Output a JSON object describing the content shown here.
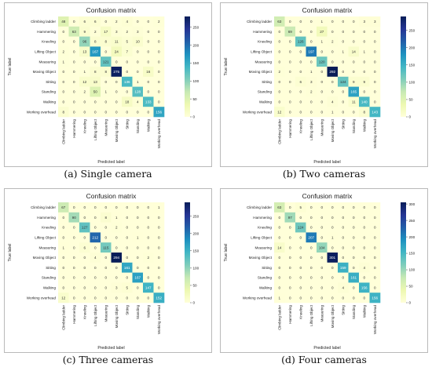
{
  "chart_data": [
    {
      "type": "heatmap",
      "title": "Confusion matrix",
      "caption": "(a) Single camera",
      "xlabel": "Predicted label",
      "ylabel": "True label",
      "labels": [
        "Climbing ladder",
        "Hammering",
        "Kneeling",
        "Lifting Object",
        "Measuring",
        "Moving Object",
        "Sitting",
        "Standing",
        "Walking",
        "Working overhead"
      ],
      "values": [
        [
          48,
          0,
          6,
          6,
          0,
          2,
          4,
          0,
          0,
          2
        ],
        [
          0,
          63,
          9,
          2,
          17,
          3,
          2,
          3,
          0,
          0
        ],
        [
          0,
          0,
          96,
          8,
          8,
          11,
          5,
          10,
          0,
          0
        ],
        [
          2,
          0,
          13,
          167,
          0,
          24,
          7,
          0,
          0,
          0
        ],
        [
          1,
          0,
          0,
          0,
          121,
          0,
          0,
          0,
          0,
          0
        ],
        [
          0,
          0,
          1,
          8,
          8,
          275,
          0,
          0,
          16,
          0
        ],
        [
          0,
          0,
          12,
          13,
          0,
          0,
          136,
          1,
          0,
          0
        ],
        [
          0,
          0,
          2,
          50,
          1,
          0,
          0,
          128,
          0,
          0
        ],
        [
          0,
          0,
          0,
          0,
          0,
          0,
          18,
          4,
          133,
          0
        ],
        [
          8,
          0,
          0,
          0,
          0,
          0,
          0,
          0,
          0,
          156
        ]
      ],
      "vmax": 280,
      "colorbar_ticks": [
        0,
        50,
        100,
        150,
        200,
        250
      ]
    },
    {
      "type": "heatmap",
      "title": "Confusion matrix",
      "caption": "(b) Two cameras",
      "xlabel": "Predicted label",
      "ylabel": "True label",
      "labels": [
        "Climbing ladder",
        "Hammering",
        "Kneeling",
        "Lifting Object",
        "Measuring",
        "Moving Object",
        "Sitting",
        "Standing",
        "Walking",
        "Working overhead"
      ],
      "values": [
        [
          63,
          0,
          0,
          0,
          1,
          0,
          0,
          0,
          3,
          3
        ],
        [
          0,
          69,
          0,
          0,
          27,
          0,
          0,
          0,
          0,
          0
        ],
        [
          0,
          0,
          126,
          0,
          1,
          2,
          0,
          0,
          0,
          0
        ],
        [
          0,
          0,
          0,
          197,
          0,
          0,
          1,
          14,
          1,
          0
        ],
        [
          0,
          0,
          0,
          0,
          120,
          0,
          0,
          0,
          0,
          0
        ],
        [
          2,
          0,
          0,
          1,
          0,
          292,
          0,
          0,
          0,
          0
        ],
        [
          0,
          0,
          6,
          3,
          0,
          0,
          124,
          9,
          9,
          0
        ],
        [
          0,
          0,
          0,
          2,
          0,
          0,
          0,
          165,
          0,
          0
        ],
        [
          0,
          0,
          0,
          0,
          0,
          4,
          0,
          11,
          140,
          0
        ],
        [
          12,
          0,
          0,
          0,
          0,
          1,
          0,
          0,
          8,
          143
        ]
      ],
      "vmax": 290,
      "colorbar_ticks": [
        0,
        50,
        100,
        150,
        200,
        250
      ]
    },
    {
      "type": "heatmap",
      "title": "Confusion matrix",
      "caption": "(c) Three cameras",
      "xlabel": "Predicted label",
      "ylabel": "True label",
      "labels": [
        "Climbing ladder",
        "Hammering",
        "Kneeling",
        "Lifting Object",
        "Measuring",
        "Moving Object",
        "Sitting",
        "Standing",
        "Walking",
        "Working overhead"
      ],
      "values": [
        [
          67,
          0,
          0,
          0,
          0,
          0,
          0,
          0,
          0,
          1
        ],
        [
          0,
          90,
          0,
          0,
          8,
          1,
          0,
          0,
          0,
          0
        ],
        [
          0,
          0,
          127,
          0,
          0,
          2,
          0,
          0,
          0,
          0
        ],
        [
          0,
          0,
          0,
          212,
          0,
          0,
          0,
          1,
          0,
          0
        ],
        [
          1,
          0,
          6,
          0,
          115,
          0,
          0,
          0,
          0,
          0
        ],
        [
          0,
          0,
          0,
          4,
          0,
          294,
          0,
          0,
          2,
          0
        ],
        [
          0,
          0,
          0,
          0,
          0,
          0,
          161,
          0,
          0,
          0
        ],
        [
          0,
          0,
          0,
          0,
          0,
          0,
          0,
          167,
          0,
          0
        ],
        [
          0,
          0,
          0,
          0,
          0,
          3,
          5,
          0,
          147,
          0
        ],
        [
          12,
          0,
          0,
          0,
          0,
          0,
          0,
          0,
          0,
          152
        ]
      ],
      "vmax": 290,
      "colorbar_ticks": [
        0,
        50,
        100,
        150,
        200,
        250
      ]
    },
    {
      "type": "heatmap",
      "title": "Confusion matrix",
      "caption": "(d) Four cameras",
      "xlabel": "Predicted label",
      "ylabel": "True label",
      "labels": [
        "Climbing ladder",
        "Hammering",
        "Kneeling",
        "Lifting Object",
        "Measuring",
        "Moving Object",
        "Sitting",
        "Standing",
        "Walking",
        "Working overhead"
      ],
      "values": [
        [
          63,
          0,
          5,
          0,
          0,
          0,
          0,
          0,
          0,
          0
        ],
        [
          0,
          97,
          0,
          0,
          0,
          0,
          0,
          0,
          0,
          0
        ],
        [
          0,
          0,
          124,
          0,
          0,
          0,
          0,
          0,
          0,
          0
        ],
        [
          0,
          0,
          0,
          207,
          0,
          1,
          0,
          0,
          0,
          0
        ],
        [
          14,
          0,
          0,
          0,
          104,
          0,
          0,
          0,
          0,
          0
        ],
        [
          0,
          0,
          0,
          0,
          0,
          301,
          0,
          0,
          0,
          0
        ],
        [
          0,
          0,
          0,
          0,
          0,
          0,
          159,
          0,
          4,
          0
        ],
        [
          0,
          0,
          0,
          0,
          0,
          0,
          0,
          161,
          0,
          0
        ],
        [
          0,
          0,
          0,
          0,
          0,
          0,
          4,
          0,
          156,
          0
        ],
        [
          1,
          0,
          0,
          0,
          0,
          0,
          0,
          0,
          0,
          156
        ]
      ],
      "vmax": 305,
      "colorbar_ticks": [
        0,
        50,
        100,
        150,
        200,
        250,
        300
      ]
    }
  ]
}
